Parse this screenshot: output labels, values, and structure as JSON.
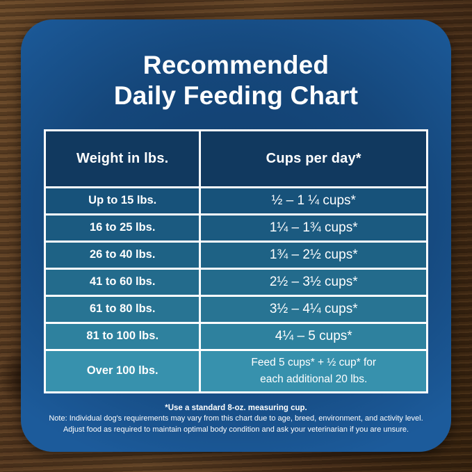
{
  "title": {
    "line1": "Recommended",
    "line2": "Daily Feeding Chart"
  },
  "table": {
    "col_headers": [
      "Weight in lbs.",
      "Cups per day*"
    ],
    "rows": [
      {
        "weight": "Up to 15 lbs.",
        "cups": "½ – 1 ¼ cups*",
        "color": "#17527A"
      },
      {
        "weight": "16 to 25 lbs.",
        "cups": "1¼ – 1¾  cups*",
        "color": "#1B5A80"
      },
      {
        "weight": "26 to 40 lbs.",
        "cups": "1¾ – 2½ cups*",
        "color": "#1E6285"
      },
      {
        "weight": "41 to 60 lbs.",
        "cups": "2½ – 3½ cups*",
        "color": "#236B8C"
      },
      {
        "weight": "61 to 80 lbs.",
        "cups": "3½ – 4¼ cups*",
        "color": "#287493"
      },
      {
        "weight": "81 to 100 lbs.",
        "cups": "4¼ – 5 cups*",
        "color": "#2E819E"
      },
      {
        "weight": "Over 100 lbs.",
        "cups": "Feed 5 cups*  + ½ cup* for",
        "cups2": "each  additional 20 lbs.",
        "color": "#3791AD"
      }
    ]
  },
  "footnotes": {
    "measuring_cup": "*Use a standard 8-oz. measuring cup.",
    "note_line1": "Note: Individual dog's requirements may vary from this chart due to age, breed, environment, and activity level.",
    "note_line2": "Adjust food as required to maintain optimal body condition and ask your veterinarian if you are unsure."
  },
  "colors": {
    "card_bg_center": "#123F6E",
    "card_bg_edge": "#1C5B9B",
    "header_bg": "#11395F",
    "table_border": "#FFFFFF",
    "text": "#FFFFFF",
    "wood_dark": "#38240F",
    "wood_mid": "#573A21",
    "wood_light": "#6E4D2C"
  },
  "chart_data": {
    "type": "table",
    "title": "Recommended Daily Feeding Chart",
    "columns": [
      "Weight in lbs.",
      "Cups per day*"
    ],
    "rows": [
      [
        "Up to 15 lbs.",
        "½ – 1¼ cups*"
      ],
      [
        "16 to 25 lbs.",
        "1¼ – 1¾ cups*"
      ],
      [
        "26 to 40 lbs.",
        "1¾ – 2½ cups*"
      ],
      [
        "41 to 60 lbs.",
        "2½ – 3½ cups*"
      ],
      [
        "61 to 80 lbs.",
        "3½ – 4¼ cups*"
      ],
      [
        "81 to 100 lbs.",
        "4¼ – 5 cups*"
      ],
      [
        "Over 100 lbs.",
        "Feed 5 cups* + ½ cup* for each additional 20 lbs."
      ]
    ],
    "footnotes": [
      "*Use a standard 8-oz. measuring cup.",
      "Note: Individual dog's requirements may vary from this chart due to age, breed, environment, and activity level.",
      "Adjust food as required to maintain optimal body condition and ask your veterinarian if you are unsure."
    ],
    "row_color_ramp": [
      "#17527A",
      "#3791AD"
    ]
  }
}
